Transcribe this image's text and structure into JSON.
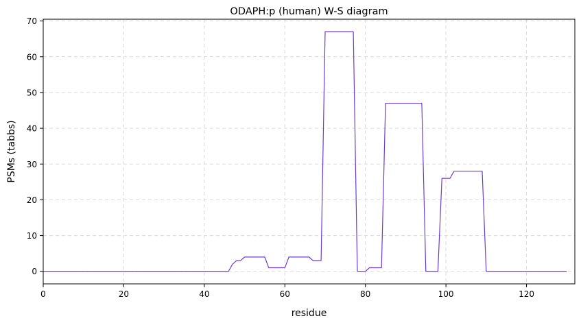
{
  "chart_data": {
    "type": "line",
    "title": "ODAPH:p (human) W-S diagram",
    "xlabel": "residue",
    "ylabel": "PSMs (tabbs)",
    "xlim": [
      0,
      132
    ],
    "ylim": [
      -3.5,
      70.5
    ],
    "xticks": [
      0,
      20,
      40,
      60,
      80,
      100,
      120
    ],
    "yticks": [
      0,
      10,
      20,
      30,
      40,
      50,
      60,
      70
    ],
    "grid": true,
    "line_color": "#6a3bd2",
    "x": [
      0,
      1,
      2,
      3,
      4,
      5,
      6,
      7,
      8,
      9,
      10,
      11,
      12,
      13,
      14,
      15,
      16,
      17,
      18,
      19,
      20,
      21,
      22,
      23,
      24,
      25,
      26,
      27,
      28,
      29,
      30,
      31,
      32,
      33,
      34,
      35,
      36,
      37,
      38,
      39,
      40,
      41,
      42,
      43,
      44,
      45,
      46,
      47,
      48,
      49,
      50,
      51,
      52,
      53,
      54,
      55,
      56,
      57,
      58,
      59,
      60,
      61,
      62,
      63,
      64,
      65,
      66,
      67,
      68,
      69,
      70,
      71,
      72,
      73,
      74,
      75,
      76,
      77,
      78,
      79,
      80,
      81,
      82,
      83,
      84,
      85,
      86,
      87,
      88,
      89,
      90,
      91,
      92,
      93,
      94,
      95,
      96,
      97,
      98,
      99,
      100,
      101,
      102,
      103,
      104,
      105,
      106,
      107,
      108,
      109,
      110,
      111,
      112,
      113,
      114,
      115,
      116,
      117,
      118,
      119,
      120,
      121,
      122,
      123,
      124,
      125,
      126,
      127,
      128,
      129,
      130
    ],
    "y": [
      0,
      0,
      0,
      0,
      0,
      0,
      0,
      0,
      0,
      0,
      0,
      0,
      0,
      0,
      0,
      0,
      0,
      0,
      0,
      0,
      0,
      0,
      0,
      0,
      0,
      0,
      0,
      0,
      0,
      0,
      0,
      0,
      0,
      0,
      0,
      0,
      0,
      0,
      0,
      0,
      0,
      0,
      0,
      0,
      0,
      0,
      0,
      2,
      3,
      3,
      4,
      4,
      4,
      4,
      4,
      4,
      1,
      1,
      1,
      1,
      1,
      4,
      4,
      4,
      4,
      4,
      4,
      3,
      3,
      3,
      67,
      67,
      67,
      67,
      67,
      67,
      67,
      67,
      0,
      0,
      0,
      1,
      1,
      1,
      1,
      47,
      47,
      47,
      47,
      47,
      47,
      47,
      47,
      47,
      47,
      0,
      0,
      0,
      0,
      26,
      26,
      26,
      28,
      28,
      28,
      28,
      28,
      28,
      28,
      28,
      0,
      0,
      0,
      0,
      0,
      0,
      0,
      0,
      0,
      0,
      0,
      0,
      0,
      0,
      0,
      0,
      0,
      0,
      0,
      0,
      0
    ]
  }
}
